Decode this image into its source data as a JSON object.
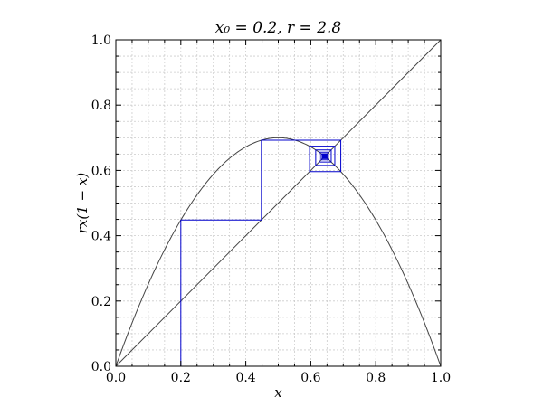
{
  "chart_data": {
    "type": "line",
    "title": "x₀ = 0.2, r = 2.8",
    "xlabel": "x",
    "ylabel": "rx(1 − x)",
    "xlim": [
      0.0,
      1.0
    ],
    "ylim": [
      0.0,
      1.0
    ],
    "xticks": [
      "0.0",
      "0.2",
      "0.4",
      "0.6",
      "0.8",
      "1.0"
    ],
    "yticks": [
      "0.0",
      "0.2",
      "0.4",
      "0.6",
      "0.8",
      "1.0"
    ],
    "grid": true,
    "r": 2.8,
    "x0": 0.2,
    "iterations": 40,
    "colors": {
      "curve": "#444444",
      "diagonal": "#444444",
      "cobweb": "#0000cc",
      "grid": "#cccccc",
      "axes": "#000000"
    }
  }
}
